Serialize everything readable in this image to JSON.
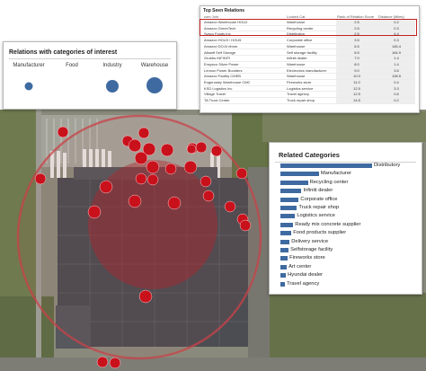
{
  "colors": {
    "accent": "#3f6aa1",
    "marker_red": "#c9111c",
    "highlight": "#c21f1f"
  },
  "relations_panel": {
    "title": "Relations with categories of interest",
    "categories": [
      {
        "label": "Manufacturer",
        "size": 1
      },
      {
        "label": "Food",
        "size": 0
      },
      {
        "label": "Industry",
        "size": 2
      },
      {
        "label": "Warehouse",
        "size": 3
      }
    ]
  },
  "top_seen": {
    "title": "Top Seen Relations",
    "columns": [
      "com Join",
      "Looked Cat",
      "Rank of Relation Score",
      "Distance (Miles)"
    ],
    "rows": [
      [
        "Amazon Warehouse HOU2",
        "Warehouse",
        "2.5",
        "0.2"
      ],
      [
        "Amazon GreenTech",
        "Recycling center",
        "2.5",
        "0.3"
      ],
      [
        "Sysco Foods Inc",
        "Distribution",
        "2.5",
        "4.4"
      ],
      [
        "Amazon HOU3 / HOU5",
        "Corporate office",
        "3.5",
        "0.3"
      ],
      [
        "Amazon DOJ4 ribroe",
        "Warehouse",
        "6.5",
        "145.4"
      ],
      [
        "Allstaff Self Storage",
        "Self storage facility",
        "8.5",
        "164.9"
      ],
      [
        "Grubbs INFINITI",
        "Infiniti dealer",
        "7.0",
        "1.4"
      ],
      [
        "Ensysco Silver Power",
        "Warehouse",
        "8.0",
        "1.4"
      ],
      [
        "Lennox Power Boulders",
        "Electronics manufacturer",
        "9.0",
        "3.6"
      ],
      [
        "Amazon Facility CMEB",
        "Warehouse",
        "10.0",
        "128.5"
      ],
      [
        "Eugenosky Warehouse CMC",
        "Fireworks store",
        "11.0",
        "0.4"
      ],
      [
        "KSD Logistics Inc",
        "Logistics service",
        "12.5",
        "3.3"
      ],
      [
        "Village Travel",
        "Travel agency",
        "12.5",
        "0.6"
      ],
      [
        "TA Truck Center",
        "Truck repair shop",
        "14.5",
        "0.2"
      ]
    ]
  },
  "related": {
    "title": "Related Categories",
    "items": [
      {
        "label": "Distributory",
        "value": 100
      },
      {
        "label": "Manufacturer",
        "value": 42
      },
      {
        "label": "Recycling center",
        "value": 30
      },
      {
        "label": "Infiniti dealer",
        "value": 23
      },
      {
        "label": "Corporate office",
        "value": 20
      },
      {
        "label": "Truck repair shop",
        "value": 18
      },
      {
        "label": "Logistics service",
        "value": 16
      },
      {
        "label": "Ready mix concrete supplier",
        "value": 14
      },
      {
        "label": "Food products supplier",
        "value": 12
      },
      {
        "label": "Delivery service",
        "value": 10
      },
      {
        "label": "Selfstorage facility",
        "value": 9
      },
      {
        "label": "Fireworks store",
        "value": 8
      },
      {
        "label": "Art center",
        "value": 7
      },
      {
        "label": "Hyundai dealer",
        "value": 6
      },
      {
        "label": "Travel agency",
        "value": 5
      }
    ]
  }
}
